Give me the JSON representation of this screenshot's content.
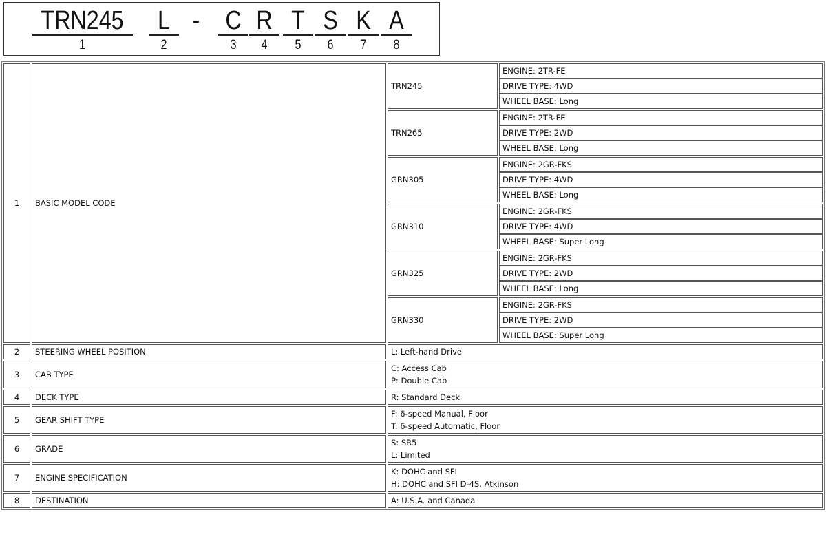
{
  "header": {
    "segments": [
      {
        "code": "TRN245",
        "num": "1"
      },
      {
        "code": "L",
        "num": "2"
      },
      {
        "code": "C",
        "num": "3"
      },
      {
        "code": "R",
        "num": "4"
      },
      {
        "code": "T",
        "num": "5"
      },
      {
        "code": "S",
        "num": "6"
      },
      {
        "code": "K",
        "num": "7"
      },
      {
        "code": "A",
        "num": "8"
      }
    ],
    "dash": "-"
  },
  "rows": [
    {
      "num": "1",
      "label": "BASIC MODEL CODE",
      "models": [
        {
          "code": "TRN245",
          "specs": [
            "ENGINE: 2TR-FE",
            "DRIVE TYPE: 4WD",
            "WHEEL BASE: Long"
          ]
        },
        {
          "code": "TRN265",
          "specs": [
            "ENGINE: 2TR-FE",
            "DRIVE TYPE: 2WD",
            "WHEEL BASE: Long"
          ]
        },
        {
          "code": "GRN305",
          "specs": [
            "ENGINE: 2GR-FKS",
            "DRIVE TYPE: 4WD",
            "WHEEL BASE: Long"
          ]
        },
        {
          "code": "GRN310",
          "specs": [
            "ENGINE: 2GR-FKS",
            "DRIVE TYPE: 4WD",
            "WHEEL BASE: Super Long"
          ]
        },
        {
          "code": "GRN325",
          "specs": [
            "ENGINE: 2GR-FKS",
            "DRIVE TYPE: 2WD",
            "WHEEL BASE: Long"
          ]
        },
        {
          "code": "GRN330",
          "specs": [
            "ENGINE: 2GR-FKS",
            "DRIVE TYPE: 2WD",
            "WHEEL BASE: Super Long"
          ]
        }
      ]
    },
    {
      "num": "2",
      "label": "STEERING WHEEL POSITION",
      "values": [
        "L: Left-hand Drive"
      ]
    },
    {
      "num": "3",
      "label": "CAB TYPE",
      "values": [
        "C: Access Cab",
        "P: Double Cab"
      ]
    },
    {
      "num": "4",
      "label": "DECK TYPE",
      "values": [
        "R: Standard Deck"
      ]
    },
    {
      "num": "5",
      "label": "GEAR SHIFT TYPE",
      "values": [
        "F: 6-speed Manual, Floor",
        "T: 6-speed Automatic, Floor"
      ]
    },
    {
      "num": "6",
      "label": "GRADE",
      "values": [
        "S: SR5",
        "L: Limited"
      ]
    },
    {
      "num": "7",
      "label": "ENGINE SPECIFICATION",
      "values": [
        "K: DOHC and SFI",
        "H: DOHC and SFI D-4S, Atkinson"
      ]
    },
    {
      "num": "8",
      "label": "DESTINATION",
      "values": [
        "A: U.S.A. and Canada"
      ]
    }
  ]
}
